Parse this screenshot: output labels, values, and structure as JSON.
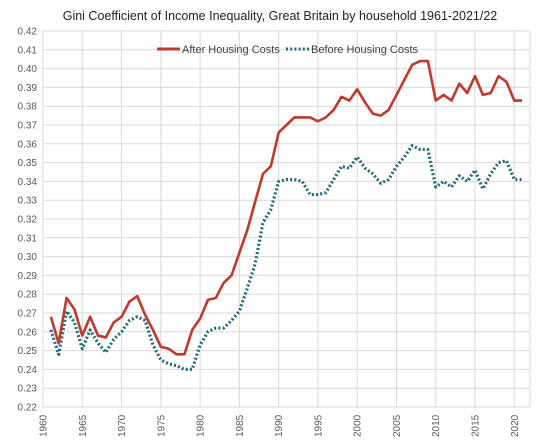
{
  "chart_data": {
    "type": "line",
    "title": "Gini Coefficient of Income Inequality, Great Britain by household 1961-2021/22",
    "xlabel": "",
    "ylabel": "",
    "xlim": [
      1960,
      2022
    ],
    "ylim": [
      0.22,
      0.42
    ],
    "x_ticks": [
      "1960",
      "1965",
      "1970",
      "1975",
      "1980",
      "1985",
      "1990",
      "1995",
      "2000",
      "2005",
      "2010",
      "2015",
      "2020"
    ],
    "y_ticks": [
      "0.22",
      "0.23",
      "0.24",
      "0.25",
      "0.26",
      "0.27",
      "0.28",
      "0.29",
      "0.30",
      "0.31",
      "0.32",
      "0.33",
      "0.34",
      "0.35",
      "0.36",
      "0.37",
      "0.38",
      "0.39",
      "0.40",
      "0.41",
      "0.42"
    ],
    "grid": true,
    "legend_position": "top",
    "x": [
      1961,
      1962,
      1963,
      1964,
      1965,
      1966,
      1967,
      1968,
      1969,
      1970,
      1971,
      1972,
      1973,
      1974,
      1975,
      1976,
      1977,
      1978,
      1979,
      1980,
      1981,
      1982,
      1983,
      1984,
      1985,
      1986,
      1987,
      1988,
      1989,
      1990,
      1991,
      1992,
      1993,
      1994,
      1995,
      1996,
      1997,
      1998,
      1999,
      2000,
      2001,
      2002,
      2003,
      2004,
      2005,
      2006,
      2007,
      2008,
      2009,
      2010,
      2011,
      2012,
      2013,
      2014,
      2015,
      2016,
      2017,
      2018,
      2019,
      2020,
      2021
    ],
    "series": [
      {
        "name": "After Housing Costs",
        "color": "#c0392b",
        "style": "solid",
        "values": [
          0.268,
          0.254,
          0.278,
          0.272,
          0.258,
          0.268,
          0.258,
          0.257,
          0.265,
          0.268,
          0.276,
          0.279,
          0.269,
          0.261,
          0.252,
          0.251,
          0.248,
          0.248,
          0.261,
          0.267,
          0.277,
          0.278,
          0.286,
          0.29,
          0.302,
          0.314,
          0.329,
          0.344,
          0.348,
          0.366,
          0.37,
          0.374,
          0.374,
          0.374,
          0.372,
          0.374,
          0.378,
          0.385,
          0.383,
          0.389,
          0.382,
          0.376,
          0.375,
          0.378,
          0.386,
          0.394,
          0.402,
          0.404,
          0.404,
          0.383,
          0.386,
          0.383,
          0.392,
          0.387,
          0.396,
          0.386,
          0.387,
          0.396,
          0.393,
          0.383,
          0.383
        ]
      },
      {
        "name": "Before Housing Costs",
        "color": "#1f6b7a",
        "style": "dotted",
        "values": [
          0.261,
          0.248,
          0.271,
          0.265,
          0.251,
          0.261,
          0.254,
          0.249,
          0.256,
          0.26,
          0.266,
          0.268,
          0.266,
          0.253,
          0.245,
          0.243,
          0.242,
          0.24,
          0.24,
          0.253,
          0.26,
          0.262,
          0.262,
          0.266,
          0.271,
          0.283,
          0.296,
          0.318,
          0.325,
          0.34,
          0.341,
          0.341,
          0.34,
          0.333,
          0.333,
          0.334,
          0.341,
          0.348,
          0.347,
          0.353,
          0.347,
          0.344,
          0.339,
          0.341,
          0.348,
          0.353,
          0.359,
          0.357,
          0.357,
          0.337,
          0.34,
          0.337,
          0.343,
          0.34,
          0.346,
          0.336,
          0.344,
          0.35,
          0.351,
          0.341,
          0.341
        ]
      }
    ]
  }
}
